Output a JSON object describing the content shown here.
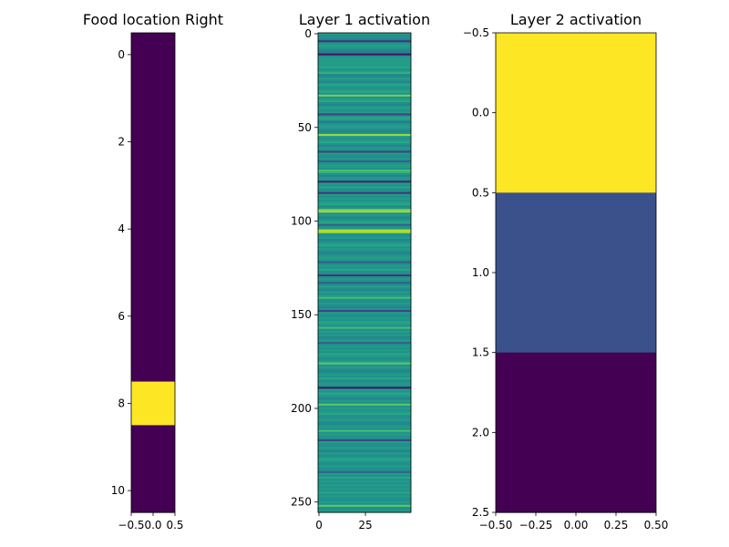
{
  "chart_data": [
    {
      "type": "heatmap",
      "title": "Food location Right",
      "colormap": "viridis",
      "xlim": [
        -0.5,
        0.5
      ],
      "ylim": [
        10.5,
        -0.5
      ],
      "xticks": [
        -0.5,
        0.0,
        0.5
      ],
      "xtick_labels": [
        "−0.5",
        "0.0",
        "0.5"
      ],
      "yticks": [
        0,
        2,
        4,
        6,
        8,
        10
      ],
      "ytick_labels": [
        "0",
        "2",
        "4",
        "6",
        "8",
        "10"
      ],
      "rows": 11,
      "cols": 1,
      "values": [
        [
          0
        ],
        [
          0
        ],
        [
          0
        ],
        [
          0
        ],
        [
          0
        ],
        [
          0
        ],
        [
          0
        ],
        [
          0
        ],
        [
          1
        ],
        [
          0
        ],
        [
          0
        ]
      ]
    },
    {
      "type": "heatmap",
      "title": "Layer 1 activation",
      "colormap": "viridis",
      "xlim": [
        -0.5,
        49.5
      ],
      "ylim": [
        255.5,
        -0.5
      ],
      "xticks": [
        0,
        25
      ],
      "xtick_labels": [
        "0",
        "25"
      ],
      "yticks": [
        0,
        50,
        100,
        150,
        200,
        250
      ],
      "ytick_labels": [
        "0",
        "50",
        "100",
        "150",
        "200",
        "250"
      ],
      "rows": 256,
      "cols": 50,
      "row_values": [
        0.55,
        0.5,
        0.5,
        0.45,
        0.15,
        0.5,
        0.55,
        0.55,
        0.5,
        0.45,
        0.45,
        0.05,
        0.5,
        0.55,
        0.55,
        0.55,
        0.55,
        0.55,
        0.6,
        0.5,
        0.55,
        0.65,
        0.45,
        0.5,
        0.55,
        0.5,
        0.45,
        0.6,
        0.55,
        0.5,
        0.55,
        0.6,
        0.5,
        0.8,
        0.5,
        0.55,
        0.6,
        0.5,
        0.45,
        0.55,
        0.55,
        0.5,
        0.55,
        0.2,
        0.5,
        0.6,
        0.55,
        0.4,
        0.5,
        0.55,
        0.55,
        0.5,
        0.45,
        0.5,
        0.85,
        0.55,
        0.5,
        0.55,
        0.6,
        0.5,
        0.45,
        0.55,
        0.5,
        0.2,
        0.55,
        0.5,
        0.5,
        0.55,
        0.3,
        0.5,
        0.55,
        0.55,
        0.5,
        0.7,
        0.65,
        0.5,
        0.45,
        0.55,
        0.5,
        0.1,
        0.55,
        0.5,
        0.6,
        0.5,
        0.5,
        0.15,
        0.55,
        0.5,
        0.55,
        0.5,
        0.55,
        0.6,
        0.5,
        0.5,
        0.8,
        0.85,
        0.5,
        0.55,
        0.45,
        0.5,
        0.55,
        0.6,
        0.3,
        0.5,
        0.55,
        0.9,
        0.85,
        0.5,
        0.5,
        0.55,
        0.45,
        0.5,
        0.55,
        0.6,
        0.5,
        0.55,
        0.5,
        0.45,
        0.5,
        0.55,
        0.55,
        0.5,
        0.3,
        0.5,
        0.55,
        0.5,
        0.6,
        0.5,
        0.5,
        0.15,
        0.5,
        0.55,
        0.5,
        0.3,
        0.5,
        0.55,
        0.5,
        0.45,
        0.55,
        0.5,
        0.55,
        0.7,
        0.5,
        0.5,
        0.55,
        0.5,
        0.45,
        0.5,
        0.2,
        0.55,
        0.5,
        0.5,
        0.55,
        0.5,
        0.6,
        0.55,
        0.5,
        0.7,
        0.5,
        0.55,
        0.5,
        0.55,
        0.45,
        0.5,
        0.55,
        0.3,
        0.5,
        0.55,
        0.5,
        0.55,
        0.5,
        0.6,
        0.55,
        0.5,
        0.5,
        0.55,
        0.75,
        0.5,
        0.55,
        0.5,
        0.45,
        0.5,
        0.55,
        0.5,
        0.6,
        0.5,
        0.5,
        0.55,
        0.5,
        0.05,
        0.55,
        0.5,
        0.6,
        0.55,
        0.5,
        0.45,
        0.55,
        0.5,
        0.75,
        0.5,
        0.55,
        0.5,
        0.55,
        0.6,
        0.5,
        0.5,
        0.55,
        0.5,
        0.45,
        0.5,
        0.55,
        0.5,
        0.7,
        0.5,
        0.55,
        0.5,
        0.5,
        0.2,
        0.55,
        0.5,
        0.5,
        0.55,
        0.5,
        0.45,
        0.55,
        0.5,
        0.5,
        0.6,
        0.55,
        0.5,
        0.5,
        0.55,
        0.5,
        0.5,
        0.3,
        0.55,
        0.5,
        0.6,
        0.5,
        0.55,
        0.5,
        0.55,
        0.5,
        0.55,
        0.5,
        0.6,
        0.5,
        0.55,
        0.5,
        0.5,
        0.55,
        0.5,
        0.75,
        0.5,
        0.5,
        0.55
      ]
    },
    {
      "type": "heatmap",
      "title": "Layer 2 activation",
      "colormap": "viridis",
      "xlim": [
        -0.5,
        0.5
      ],
      "ylim": [
        2.5,
        -0.5
      ],
      "xticks": [
        -0.5,
        -0.25,
        0.0,
        0.25,
        0.5
      ],
      "xtick_labels": [
        "−0.50",
        "−0.25",
        "0.00",
        "0.25",
        "0.50"
      ],
      "yticks": [
        -0.5,
        0.0,
        0.5,
        1.0,
        1.5,
        2.0,
        2.5
      ],
      "ytick_labels": [
        "−0.5",
        "0.0",
        "0.5",
        "1.0",
        "1.5",
        "2.0",
        "2.5"
      ],
      "rows": 3,
      "cols": 1,
      "values": [
        [
          1.0
        ],
        [
          0.25
        ],
        [
          0.0
        ]
      ]
    }
  ]
}
